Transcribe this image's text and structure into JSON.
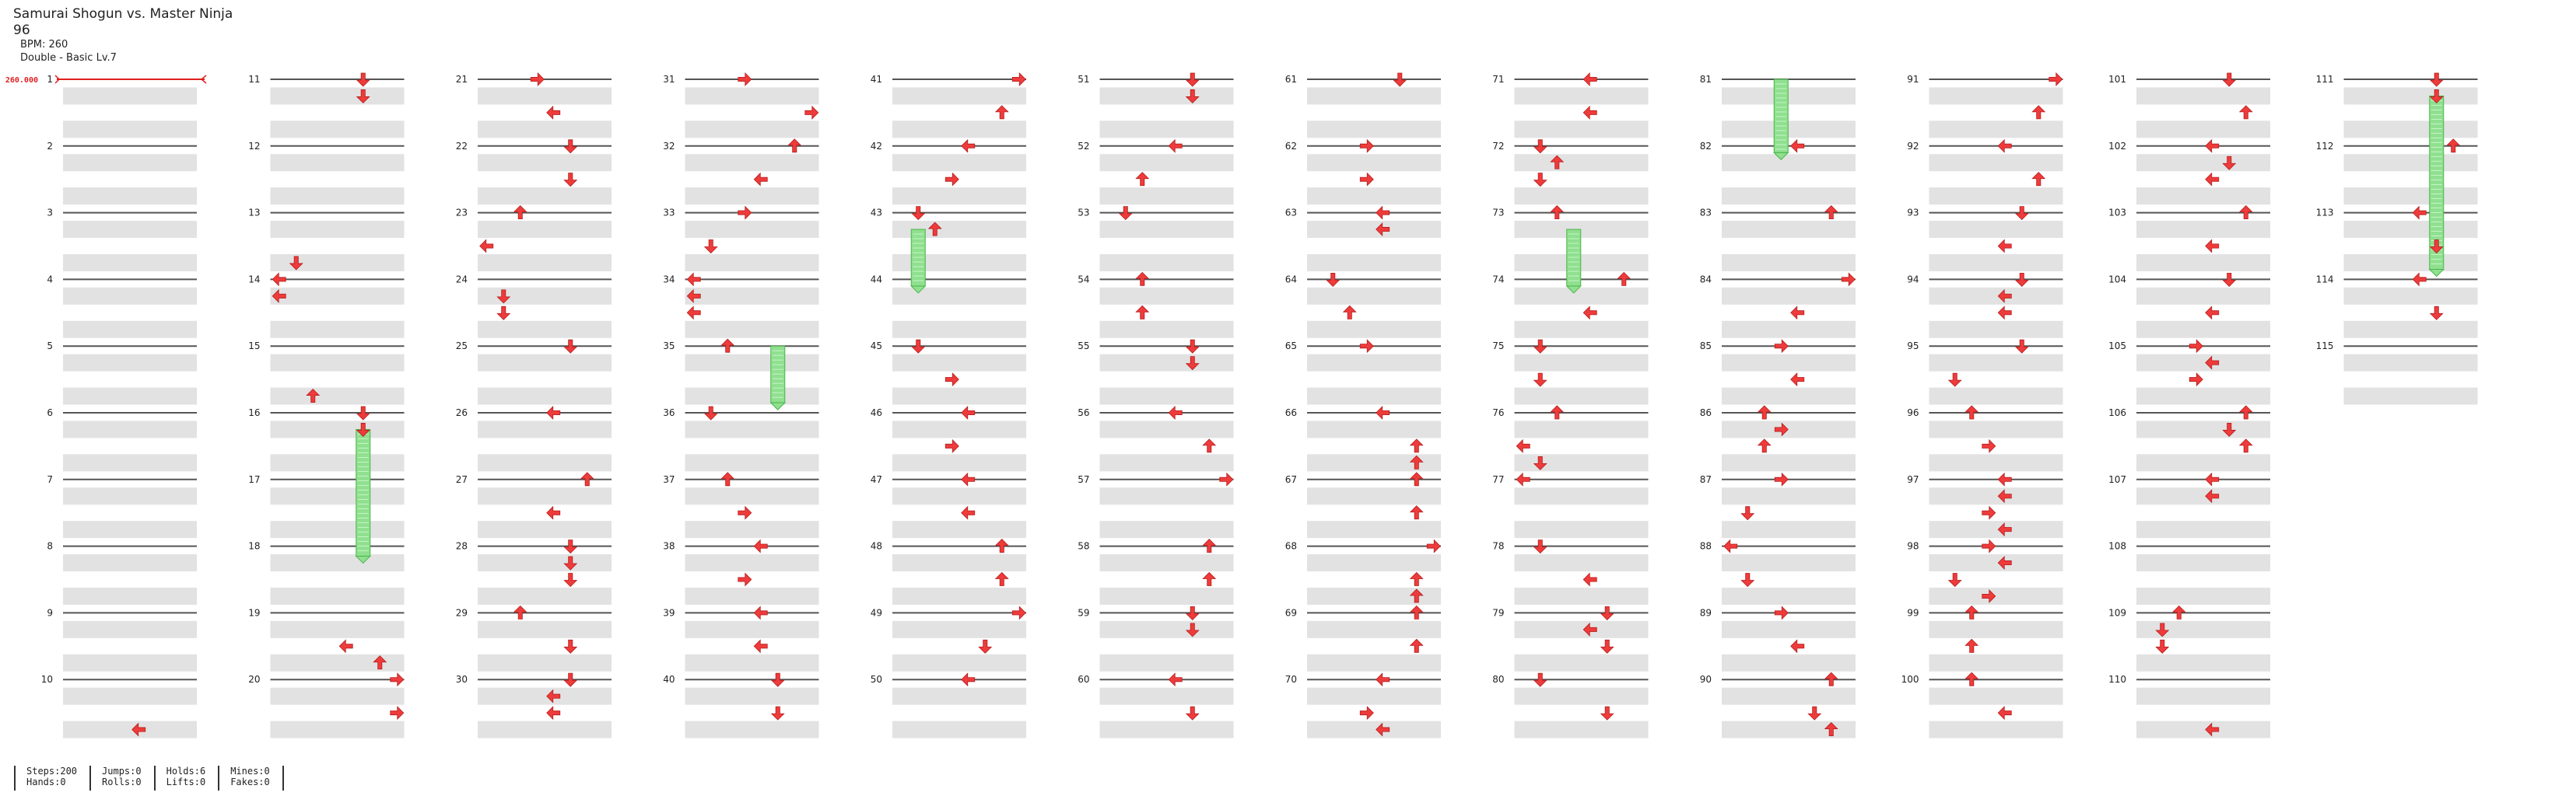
{
  "header": {
    "song_title": "Samurai Shogun vs. Master Ninja",
    "difficulty_number": "96",
    "bpm": "BPM: 260",
    "level": "Double - Basic Lv.7"
  },
  "bpm_marker": "260.000",
  "chart_data": {
    "type": "step-chart",
    "measures": 115,
    "measure_numbers": [
      "1",
      "2",
      "3",
      "4",
      "5",
      "6",
      "7",
      "8",
      "9",
      "10",
      "11",
      "12",
      "13",
      "14",
      "15",
      "16",
      "17",
      "18",
      "19",
      "20",
      "21",
      "22",
      "23",
      "24",
      "25",
      "26",
      "27",
      "28",
      "29",
      "30",
      "31",
      "32",
      "33",
      "34",
      "35",
      "36",
      "37",
      "38",
      "39",
      "40",
      "41",
      "42",
      "43",
      "44",
      "45",
      "46",
      "47",
      "48",
      "49",
      "50",
      "51",
      "52",
      "53",
      "54",
      "55",
      "56",
      "57",
      "58",
      "59",
      "60",
      "61",
      "62",
      "63",
      "64",
      "65",
      "66",
      "67",
      "68",
      "69",
      "70",
      "71",
      "72",
      "73",
      "74",
      "75",
      "76",
      "77",
      "78",
      "79",
      "80",
      "81",
      "82",
      "83",
      "84",
      "85",
      "86",
      "87",
      "88",
      "89",
      "90",
      "91",
      "92",
      "93",
      "94",
      "95",
      "96",
      "97",
      "98",
      "99",
      "100",
      "101",
      "102",
      "103",
      "104",
      "105",
      "106",
      "107",
      "108",
      "109",
      "110",
      "111",
      "112",
      "113",
      "114",
      "115"
    ],
    "notes": [
      [
        9.75,
        4
      ],
      [
        10,
        5
      ],
      [
        10.25,
        5
      ],
      [
        12.75,
        1
      ],
      [
        13,
        0
      ],
      [
        13.25,
        0
      ],
      [
        14.75,
        2
      ],
      [
        15,
        5
      ],
      [
        15.25,
        5
      ],
      [
        18.5,
        4
      ],
      [
        18.75,
        6
      ],
      [
        19,
        7
      ],
      [
        19.5,
        7
      ],
      [
        20,
        3
      ],
      [
        20.5,
        4
      ],
      [
        21,
        5
      ],
      [
        21.5,
        5
      ],
      [
        22,
        2
      ],
      [
        22.5,
        0
      ],
      [
        23.25,
        1
      ],
      [
        23.5,
        1
      ],
      [
        24,
        5
      ],
      [
        25,
        4
      ],
      [
        26,
        6
      ],
      [
        26.5,
        4
      ],
      [
        27,
        5
      ],
      [
        27.25,
        5
      ],
      [
        27.5,
        5
      ],
      [
        28,
        2
      ],
      [
        28.5,
        5
      ],
      [
        29,
        5
      ],
      [
        29.25,
        4
      ],
      [
        29.5,
        4
      ],
      [
        30,
        3
      ],
      [
        30.5,
        7
      ],
      [
        31,
        6
      ],
      [
        31.5,
        4
      ],
      [
        32,
        3
      ],
      [
        32.5,
        1
      ],
      [
        33,
        0
      ],
      [
        33.25,
        0
      ],
      [
        33.5,
        0
      ],
      [
        34,
        2
      ],
      [
        35,
        1
      ],
      [
        36,
        2
      ],
      [
        36.5,
        3
      ],
      [
        37,
        4
      ],
      [
        37.5,
        3
      ],
      [
        38,
        4
      ],
      [
        38.5,
        4
      ],
      [
        39,
        5
      ],
      [
        39.5,
        5
      ],
      [
        40,
        7
      ],
      [
        40.5,
        6
      ],
      [
        41,
        4
      ],
      [
        41.5,
        3
      ],
      [
        42,
        1
      ],
      [
        42.25,
        2
      ],
      [
        44,
        1
      ],
      [
        44.5,
        3
      ],
      [
        45,
        4
      ],
      [
        45.5,
        3
      ],
      [
        46,
        4
      ],
      [
        46.5,
        4
      ],
      [
        47,
        6
      ],
      [
        47.5,
        6
      ],
      [
        48,
        7
      ],
      [
        48.5,
        5
      ],
      [
        49,
        4
      ],
      [
        50,
        5
      ],
      [
        50.25,
        5
      ],
      [
        51,
        4
      ],
      [
        51.5,
        2
      ],
      [
        52,
        1
      ],
      [
        53,
        2
      ],
      [
        53.5,
        2
      ],
      [
        54,
        5
      ],
      [
        54.25,
        5
      ],
      [
        55,
        4
      ],
      [
        55.5,
        6
      ],
      [
        56,
        7
      ],
      [
        57,
        6
      ],
      [
        57.5,
        6
      ],
      [
        58,
        5
      ],
      [
        58.25,
        5
      ],
      [
        59,
        4
      ],
      [
        59.5,
        5
      ],
      [
        60,
        5
      ],
      [
        61,
        3
      ],
      [
        61.5,
        3
      ],
      [
        62,
        4
      ],
      [
        62.25,
        4
      ],
      [
        63,
        1
      ],
      [
        63.5,
        2
      ],
      [
        64,
        3
      ],
      [
        65,
        4
      ],
      [
        65.5,
        6
      ],
      [
        65.75,
        6
      ],
      [
        66,
        6
      ],
      [
        66.5,
        6
      ],
      [
        67,
        7
      ],
      [
        67.5,
        6
      ],
      [
        67.75,
        6
      ],
      [
        68,
        6
      ],
      [
        68.5,
        6
      ],
      [
        69,
        4
      ],
      [
        69.5,
        3
      ],
      [
        69.75,
        4
      ],
      [
        70,
        4
      ],
      [
        70.5,
        4
      ],
      [
        71,
        1
      ],
      [
        71.25,
        2
      ],
      [
        71.5,
        1
      ],
      [
        72,
        2
      ],
      [
        73,
        6
      ],
      [
        73.5,
        4
      ],
      [
        74,
        1
      ],
      [
        74.5,
        1
      ],
      [
        75,
        2
      ],
      [
        75.5,
        0
      ],
      [
        75.75,
        1
      ],
      [
        76,
        0
      ],
      [
        77,
        1
      ],
      [
        77.5,
        4
      ],
      [
        78,
        5
      ],
      [
        78.25,
        4
      ],
      [
        78.5,
        5
      ],
      [
        79,
        1
      ],
      [
        79.5,
        5
      ],
      [
        81,
        4
      ],
      [
        82,
        6
      ],
      [
        83,
        7
      ],
      [
        83.5,
        4
      ],
      [
        84,
        3
      ],
      [
        84.5,
        4
      ],
      [
        85,
        2
      ],
      [
        85.25,
        3
      ],
      [
        85.5,
        2
      ],
      [
        86,
        3
      ],
      [
        86.5,
        1
      ],
      [
        87,
        0
      ],
      [
        87.5,
        1
      ],
      [
        88,
        3
      ],
      [
        88.5,
        4
      ],
      [
        89,
        6
      ],
      [
        89.5,
        5
      ],
      [
        89.75,
        6
      ],
      [
        90,
        7
      ],
      [
        90.5,
        6
      ],
      [
        91,
        4
      ],
      [
        91.5,
        6
      ],
      [
        92,
        5
      ],
      [
        92.5,
        4
      ],
      [
        93,
        5
      ],
      [
        93.25,
        4
      ],
      [
        93.5,
        4
      ],
      [
        94,
        5
      ],
      [
        94.5,
        1
      ],
      [
        95,
        2
      ],
      [
        95.5,
        3
      ],
      [
        96,
        4
      ],
      [
        96.25,
        4
      ],
      [
        96.5,
        3
      ],
      [
        96.75,
        4
      ],
      [
        97,
        3
      ],
      [
        97.25,
        4
      ],
      [
        97.5,
        1
      ],
      [
        97.75,
        3
      ],
      [
        98,
        2
      ],
      [
        98.5,
        2
      ],
      [
        99,
        2
      ],
      [
        99.5,
        4
      ],
      [
        100,
        5
      ],
      [
        100.5,
        6
      ],
      [
        101,
        4
      ],
      [
        101.25,
        5
      ],
      [
        101.5,
        4
      ],
      [
        102,
        6
      ],
      [
        102.5,
        4
      ],
      [
        103,
        5
      ],
      [
        103.5,
        4
      ],
      [
        104,
        3
      ],
      [
        104.25,
        4
      ],
      [
        104.5,
        3
      ],
      [
        105,
        6
      ],
      [
        105.25,
        5
      ],
      [
        105.5,
        6
      ],
      [
        106,
        4
      ],
      [
        106.25,
        4
      ],
      [
        108,
        2
      ],
      [
        108.25,
        1
      ],
      [
        108.5,
        1
      ],
      [
        109.75,
        4
      ],
      [
        110,
        5
      ],
      [
        110.25,
        5
      ],
      [
        111,
        6
      ],
      [
        112,
        4
      ],
      [
        112.5,
        5
      ],
      [
        113,
        4
      ],
      [
        113.5,
        5
      ]
    ],
    "holds": [
      [
        15.25,
        17.15,
        5
      ],
      [
        34,
        34.85,
        5
      ],
      [
        42.25,
        43.1,
        1
      ],
      [
        72.25,
        73.1,
        3
      ],
      [
        80,
        81.1,
        3
      ],
      [
        110.25,
        112.85,
        5
      ]
    ]
  },
  "footer": {
    "groups": [
      [
        "Steps:200",
        "Hands:0"
      ],
      [
        "Jumps:0",
        "Rolls:0"
      ],
      [
        "Holds:6",
        "Lifts:0"
      ],
      [
        "Mines:0",
        "Fakes:0"
      ]
    ]
  },
  "colors": {
    "arrow": "#ee3b3b",
    "arrow_dark": "#b51d1d",
    "hold": "#8fe08f",
    "hold_border": "#4bb54b",
    "band": "#e2e2e2",
    "bpm": "#e02020"
  }
}
